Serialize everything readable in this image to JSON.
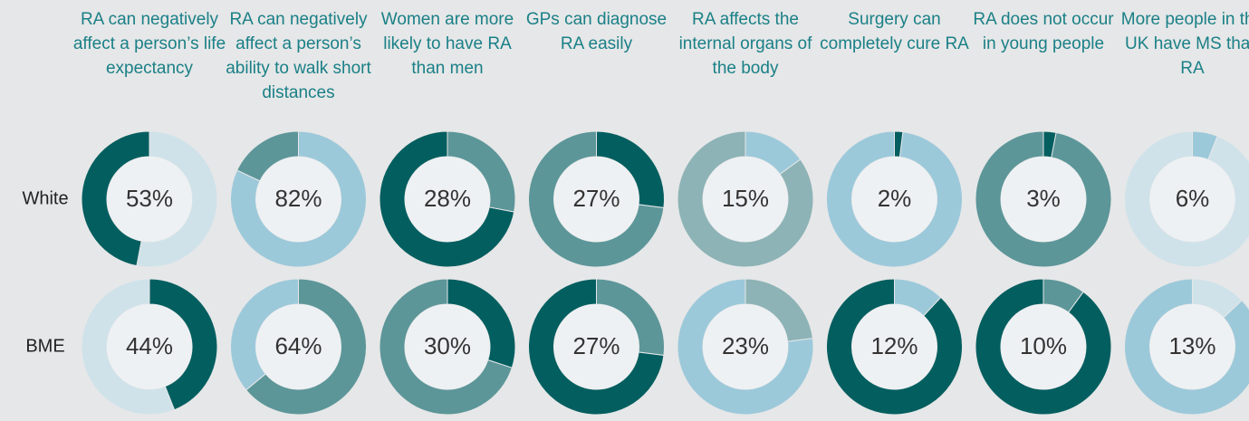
{
  "chart_data": {
    "type": "donut",
    "categories": [
      "RA can negatively affect a person’s life expectancy",
      "RA can negatively affect a person’s ability to walk short distances",
      "Women are more likely to have RA than men",
      "GPs can diagnose RA easily",
      "RA affects the internal organs of the body",
      "Surgery can completely cure RA",
      "RA does not occur in young people",
      "More people in the UK have MS than RA"
    ],
    "ylim": [
      0,
      100
    ],
    "series": [
      {
        "name": "White",
        "values": [
          53,
          82,
          28,
          27,
          15,
          2,
          3,
          6
        ],
        "value_labels": [
          "53%",
          "82%",
          "28%",
          "27%",
          "15%",
          "2%",
          "3%",
          "6%"
        ],
        "colors": [
          "#cfe2ea",
          "#9cc9da",
          "#5c9699",
          "#035e5f",
          "#9cc9da",
          "#035e5f",
          "#035e5f",
          "#9cc9da"
        ],
        "rest_colors": [
          "#035e5f",
          "#5c9699",
          "#035e5f",
          "#5c9699",
          "#8db3b6",
          "#9cc9da",
          "#5c9699",
          "#cfe2ea"
        ]
      },
      {
        "name": "BME",
        "values": [
          44,
          64,
          30,
          27,
          23,
          12,
          10,
          13
        ],
        "value_labels": [
          "44%",
          "64%",
          "30%",
          "27%",
          "23%",
          "12%",
          "10%",
          "13%"
        ],
        "colors": [
          "#035e5f",
          "#5c9699",
          "#035e5f",
          "#5c9699",
          "#8db3b6",
          "#9cc9da",
          "#5c9699",
          "#cfe2ea"
        ],
        "rest_colors": [
          "#cfe2ea",
          "#9cc9da",
          "#5c9699",
          "#035e5f",
          "#9cc9da",
          "#035e5f",
          "#035e5f",
          "#9cc9da"
        ]
      }
    ]
  }
}
